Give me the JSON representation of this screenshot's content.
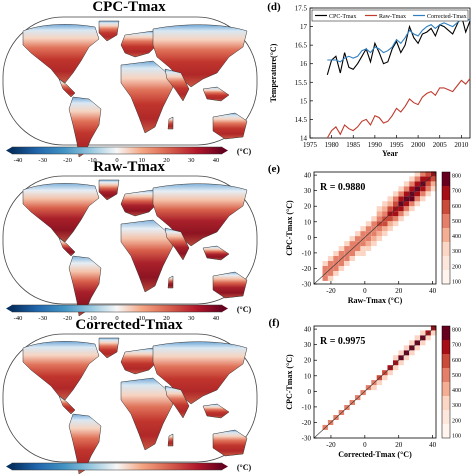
{
  "panel_labels": {
    "d": "(d)",
    "e": "(e)",
    "f": "(f)"
  },
  "maps": [
    {
      "title": "CPC-Tmax"
    },
    {
      "title": "Raw-Tmax"
    },
    {
      "title": "Corrected-Tmax"
    }
  ],
  "colorbar": {
    "ticks": [
      "-40",
      "-30",
      "-20",
      "-10",
      "0",
      "10",
      "20",
      "30",
      "40"
    ],
    "unit": "(°C)",
    "colors": [
      "#053061",
      "#2166ac",
      "#4393c3",
      "#92c5de",
      "#d1e5f0",
      "#f7f7f7",
      "#fddbc7",
      "#f4a582",
      "#d6604d",
      "#b2182b",
      "#67001f"
    ]
  },
  "chart_data": [
    {
      "type": "line",
      "panel": "(d)",
      "xlabel": "Year",
      "ylabel": "Temperature(°C)",
      "xlim": [
        1975,
        2012
      ],
      "ylim": [
        14,
        17.5
      ],
      "xticks": [
        "1975",
        "1980",
        "1985",
        "1990",
        "1995",
        "2000",
        "2005",
        "2010"
      ],
      "yticks": [
        "14",
        "14.5",
        "15",
        "15.5",
        "16",
        "16.5",
        "17",
        "17.5"
      ],
      "legend_position": "top",
      "x": [
        1979,
        1980,
        1981,
        1982,
        1983,
        1984,
        1985,
        1986,
        1987,
        1988,
        1989,
        1990,
        1991,
        1992,
        1993,
        1994,
        1995,
        1996,
        1997,
        1998,
        1999,
        2000,
        2001,
        2002,
        2003,
        2004,
        2005,
        2006,
        2007,
        2008,
        2009,
        2010,
        2011,
        2012
      ],
      "series": [
        {
          "name": "CPC-Tmax",
          "color": "#000000",
          "values": [
            15.7,
            16.1,
            16.2,
            15.75,
            16.3,
            15.9,
            15.85,
            16.0,
            16.2,
            16.4,
            16.05,
            16.55,
            16.3,
            16.0,
            16.05,
            16.4,
            16.6,
            16.3,
            16.5,
            17.0,
            16.7,
            16.55,
            16.8,
            16.85,
            16.95,
            16.75,
            17.05,
            17.0,
            16.9,
            16.8,
            17.05,
            17.3,
            16.85,
            17.15
          ]
        },
        {
          "name": "Raw-Tmax",
          "color": "#c0392b",
          "values": [
            14.0,
            14.2,
            14.3,
            14.1,
            14.35,
            14.25,
            14.2,
            14.3,
            14.45,
            14.5,
            14.35,
            14.6,
            14.55,
            14.4,
            14.45,
            14.6,
            14.8,
            14.7,
            14.85,
            15.05,
            14.95,
            14.9,
            15.1,
            15.2,
            15.25,
            15.15,
            15.35,
            15.35,
            15.3,
            15.25,
            15.4,
            15.55,
            15.45,
            15.6
          ]
        },
        {
          "name": "Corrected-Tmax",
          "color": "#2f7fc1",
          "values": [
            16.1,
            16.1,
            16.1,
            16.05,
            16.15,
            16.2,
            16.15,
            16.2,
            16.35,
            16.4,
            16.3,
            16.45,
            16.4,
            16.3,
            16.35,
            16.45,
            16.65,
            16.55,
            16.7,
            16.9,
            16.8,
            16.75,
            16.9,
            17.0,
            17.05,
            16.95,
            17.05,
            17.1,
            17.05,
            17.0,
            17.1,
            17.2,
            17.15,
            17.2
          ]
        }
      ]
    },
    {
      "type": "heatmap",
      "panel": "(e)",
      "xlabel": "Raw-Tmax (°C)",
      "ylabel": "CPC-Tmax (°C)",
      "annotation": "R = 0.9880",
      "xlim": [
        -30,
        42
      ],
      "ylim": [
        -30,
        42
      ],
      "xticks": [
        "-20",
        "0",
        "20",
        "40"
      ],
      "yticks": [
        "-30",
        "-20",
        "-10",
        "0",
        "10",
        "20",
        "30",
        "40"
      ],
      "colorbar_ticks": [
        "800",
        "700",
        "600",
        "500",
        "400",
        "300",
        "200",
        "100"
      ],
      "spread": 4.5
    },
    {
      "type": "heatmap",
      "panel": "(f)",
      "xlabel": "Corrected-Tmax (°C)",
      "ylabel": "CPC-Tmax (°C)",
      "annotation": "R = 0.9975",
      "xlim": [
        -30,
        42
      ],
      "ylim": [
        -30,
        42
      ],
      "xticks": [
        "-20",
        "0",
        "20",
        "40"
      ],
      "yticks": [
        "-30",
        "-20",
        "-10",
        "0",
        "10",
        "20",
        "30",
        "40"
      ],
      "colorbar_ticks": [
        "800",
        "700",
        "600",
        "500",
        "400",
        "300",
        "200",
        "100"
      ],
      "spread": 1.4
    }
  ]
}
